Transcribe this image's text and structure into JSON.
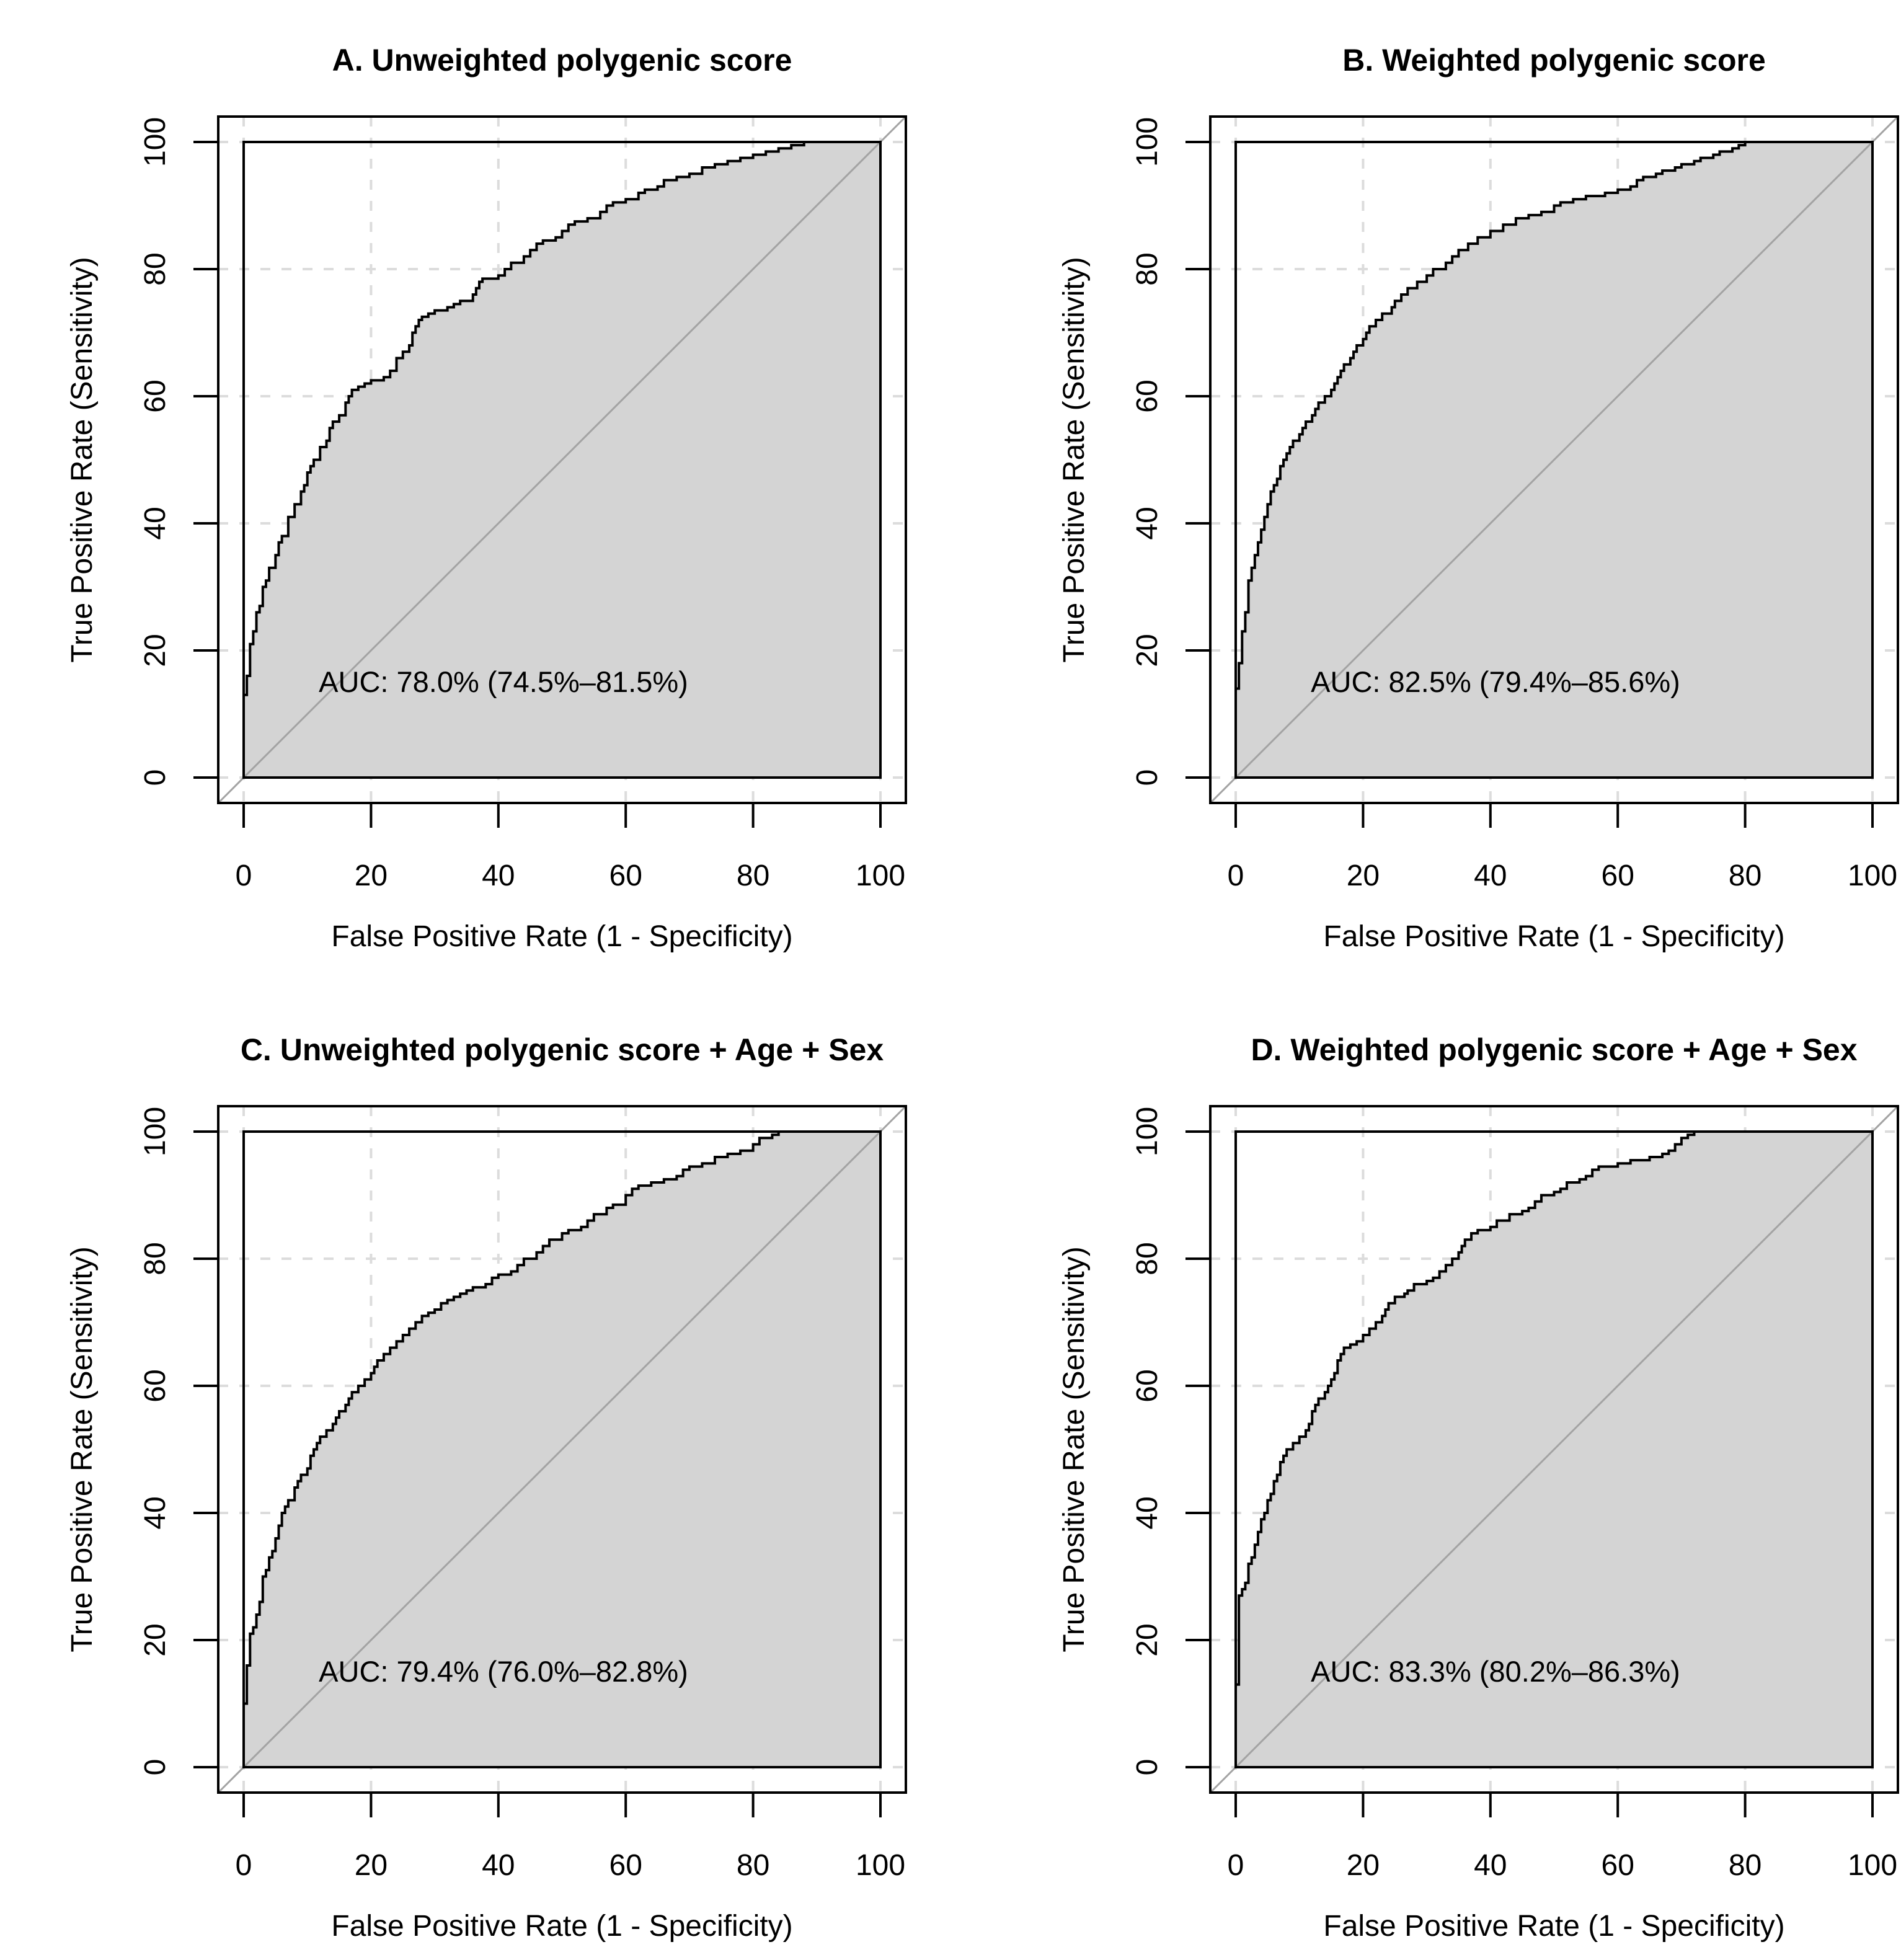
{
  "figure": {
    "background": "#ffffff",
    "colors": {
      "auc_fill": "#d4d4d4",
      "grid": "#dcdcdc",
      "diagonal": "#a3a3a3",
      "curve": "#000000",
      "frame": "#000000",
      "text": "#000000"
    }
  },
  "axes": {
    "x_label": "False Positive Rate (1 - Specificity)",
    "y_label": "True Positive Rate (Sensitivity)",
    "ticks": [
      0,
      20,
      40,
      60,
      80,
      100
    ]
  },
  "chart_data": [
    {
      "id": "A",
      "type": "line",
      "title": "A. Unweighted polygenic score",
      "xlabel": "False Positive Rate (1 - Specificity)",
      "ylabel": "True Positive Rate (Sensitivity)",
      "xlim": [
        0,
        100
      ],
      "ylim": [
        0,
        100
      ],
      "grid": true,
      "auc_label": "AUC: 78.0% (74.5%–81.5%)",
      "auc": 78.0,
      "ci_low": 74.5,
      "ci_high": 81.5,
      "roc_points": [
        [
          0,
          0
        ],
        [
          0,
          11
        ],
        [
          0.5,
          13
        ],
        [
          0.5,
          15
        ],
        [
          1,
          16
        ],
        [
          1,
          20
        ],
        [
          1.5,
          21
        ],
        [
          2,
          23
        ],
        [
          2.5,
          26
        ],
        [
          3,
          27
        ],
        [
          3,
          29
        ],
        [
          3.5,
          30
        ],
        [
          4,
          31
        ],
        [
          5,
          33
        ],
        [
          5.5,
          35
        ],
        [
          6,
          37
        ],
        [
          7,
          38
        ],
        [
          7,
          40
        ],
        [
          8,
          41
        ],
        [
          9,
          43
        ],
        [
          9.5,
          45
        ],
        [
          10,
          46
        ],
        [
          10.5,
          48
        ],
        [
          11,
          49
        ],
        [
          12,
          50
        ],
        [
          13,
          52
        ],
        [
          13.5,
          53
        ],
        [
          14,
          55
        ],
        [
          15,
          56
        ],
        [
          16,
          57
        ],
        [
          16.5,
          59
        ],
        [
          17,
          60
        ],
        [
          18,
          61
        ],
        [
          19,
          61.5
        ],
        [
          20,
          62
        ],
        [
          22,
          62.5
        ],
        [
          23,
          63
        ],
        [
          24,
          64
        ],
        [
          25,
          66
        ],
        [
          26,
          67
        ],
        [
          26.5,
          68
        ],
        [
          27,
          70
        ],
        [
          27.5,
          71
        ],
        [
          28,
          72
        ],
        [
          29,
          72.5
        ],
        [
          30,
          73
        ],
        [
          32,
          73.5
        ],
        [
          33,
          74
        ],
        [
          34,
          74.5
        ],
        [
          36,
          75
        ],
        [
          36.5,
          76
        ],
        [
          37,
          77
        ],
        [
          37.5,
          78
        ],
        [
          40,
          78.5
        ],
        [
          41,
          79
        ],
        [
          42,
          80
        ],
        [
          44,
          81
        ],
        [
          45,
          82
        ],
        [
          46,
          83
        ],
        [
          47,
          84
        ],
        [
          49,
          84.5
        ],
        [
          50,
          85
        ],
        [
          51,
          86
        ],
        [
          52,
          87
        ],
        [
          54,
          87.5
        ],
        [
          56,
          88
        ],
        [
          57,
          89
        ],
        [
          58,
          90
        ],
        [
          60,
          90.5
        ],
        [
          62,
          91
        ],
        [
          63,
          92
        ],
        [
          65,
          92.5
        ],
        [
          66,
          93
        ],
        [
          68,
          94
        ],
        [
          70,
          94.5
        ],
        [
          72,
          95
        ],
        [
          74,
          96
        ],
        [
          76,
          96.5
        ],
        [
          78,
          97
        ],
        [
          80,
          97.5
        ],
        [
          82,
          98
        ],
        [
          84,
          98.5
        ],
        [
          86,
          99
        ],
        [
          88,
          99.5
        ],
        [
          90,
          100
        ],
        [
          100,
          100
        ]
      ]
    },
    {
      "id": "B",
      "type": "line",
      "title": "B. Weighted polygenic score",
      "xlabel": "False Positive Rate (1 - Specificity)",
      "ylabel": "True Positive Rate (Sensitivity)",
      "xlim": [
        0,
        100
      ],
      "ylim": [
        0,
        100
      ],
      "grid": true,
      "auc_label": "AUC: 82.5% (79.4%–85.6%)",
      "auc": 82.5,
      "ci_low": 79.4,
      "ci_high": 85.6,
      "roc_points": [
        [
          0,
          0
        ],
        [
          0,
          12
        ],
        [
          0.5,
          14
        ],
        [
          0.5,
          17
        ],
        [
          1,
          18
        ],
        [
          1,
          21
        ],
        [
          1.5,
          23
        ],
        [
          2,
          26
        ],
        [
          2,
          28
        ],
        [
          2.5,
          31
        ],
        [
          3,
          33
        ],
        [
          3.5,
          35
        ],
        [
          4,
          37
        ],
        [
          4.5,
          39
        ],
        [
          5,
          41
        ],
        [
          5.5,
          43
        ],
        [
          6,
          45
        ],
        [
          6.5,
          46
        ],
        [
          7,
          47
        ],
        [
          7.5,
          49
        ],
        [
          8,
          50
        ],
        [
          8.5,
          51
        ],
        [
          9,
          52
        ],
        [
          10,
          53
        ],
        [
          10.5,
          54
        ],
        [
          11,
          55
        ],
        [
          12,
          56
        ],
        [
          12.5,
          57
        ],
        [
          13,
          58
        ],
        [
          14,
          59
        ],
        [
          15,
          60
        ],
        [
          15.5,
          61
        ],
        [
          16,
          62
        ],
        [
          16.5,
          63
        ],
        [
          17,
          64
        ],
        [
          18,
          65
        ],
        [
          18.5,
          66
        ],
        [
          19,
          67
        ],
        [
          20,
          68
        ],
        [
          20.5,
          69
        ],
        [
          21,
          70
        ],
        [
          22,
          71
        ],
        [
          23,
          72
        ],
        [
          24.5,
          73
        ],
        [
          25,
          74
        ],
        [
          26,
          75
        ],
        [
          27,
          76
        ],
        [
          28.5,
          77
        ],
        [
          30,
          78
        ],
        [
          31,
          79
        ],
        [
          33,
          80
        ],
        [
          34,
          81
        ],
        [
          35,
          82
        ],
        [
          36.5,
          83
        ],
        [
          38,
          84
        ],
        [
          40,
          85
        ],
        [
          42,
          86
        ],
        [
          44,
          87
        ],
        [
          46,
          88
        ],
        [
          48,
          88.5
        ],
        [
          50,
          89
        ],
        [
          51,
          90
        ],
        [
          53,
          90.5
        ],
        [
          55,
          91
        ],
        [
          58,
          91.5
        ],
        [
          60,
          92
        ],
        [
          62,
          92.5
        ],
        [
          63,
          93
        ],
        [
          64,
          94
        ],
        [
          66,
          94.5
        ],
        [
          67,
          95
        ],
        [
          69,
          95.5
        ],
        [
          70,
          96
        ],
        [
          72,
          96.5
        ],
        [
          73,
          97
        ],
        [
          75,
          97.5
        ],
        [
          76,
          98
        ],
        [
          78,
          98.5
        ],
        [
          79,
          99
        ],
        [
          80,
          99.5
        ],
        [
          81,
          100
        ],
        [
          100,
          100
        ]
      ]
    },
    {
      "id": "C",
      "type": "line",
      "title": "C. Unweighted polygenic score + Age + Sex",
      "xlabel": "False Positive Rate (1 - Specificity)",
      "ylabel": "True Positive Rate (Sensitivity)",
      "xlim": [
        0,
        100
      ],
      "ylim": [
        0,
        100
      ],
      "grid": true,
      "auc_label": "AUC: 79.4% (76.0%–82.8%)",
      "auc": 79.4,
      "ci_low": 76.0,
      "ci_high": 82.8,
      "roc_points": [
        [
          0,
          0
        ],
        [
          0,
          8
        ],
        [
          0.5,
          10
        ],
        [
          0.5,
          14
        ],
        [
          1,
          16
        ],
        [
          1,
          20
        ],
        [
          1.5,
          21
        ],
        [
          2,
          22
        ],
        [
          2,
          23
        ],
        [
          2.5,
          24
        ],
        [
          3,
          26
        ],
        [
          3,
          28
        ],
        [
          3.5,
          30
        ],
        [
          4,
          31
        ],
        [
          4.5,
          33
        ],
        [
          5,
          34
        ],
        [
          5.5,
          36
        ],
        [
          6,
          38
        ],
        [
          6.5,
          40
        ],
        [
          7,
          41
        ],
        [
          8,
          42
        ],
        [
          8.5,
          44
        ],
        [
          9,
          45
        ],
        [
          10,
          46
        ],
        [
          10.5,
          47
        ],
        [
          11,
          49
        ],
        [
          11.5,
          50
        ],
        [
          12,
          51
        ],
        [
          13,
          52
        ],
        [
          14,
          53
        ],
        [
          14.5,
          54
        ],
        [
          15,
          55
        ],
        [
          16,
          56
        ],
        [
          16.5,
          57
        ],
        [
          17,
          58
        ],
        [
          18,
          59
        ],
        [
          19,
          60
        ],
        [
          20,
          61
        ],
        [
          20.5,
          62
        ],
        [
          21,
          63
        ],
        [
          22,
          64
        ],
        [
          23,
          65
        ],
        [
          24,
          66
        ],
        [
          25,
          67
        ],
        [
          26,
          68
        ],
        [
          27,
          69
        ],
        [
          28,
          70
        ],
        [
          29,
          71
        ],
        [
          30,
          71.5
        ],
        [
          31,
          72
        ],
        [
          32,
          73
        ],
        [
          33,
          73.5
        ],
        [
          34,
          74
        ],
        [
          35,
          74.5
        ],
        [
          36,
          75
        ],
        [
          38,
          75.5
        ],
        [
          39,
          76
        ],
        [
          40,
          77
        ],
        [
          42,
          77.5
        ],
        [
          43,
          78
        ],
        [
          44,
          79
        ],
        [
          46,
          80
        ],
        [
          47,
          81
        ],
        [
          48,
          82
        ],
        [
          50,
          83
        ],
        [
          51,
          84
        ],
        [
          53,
          84.5
        ],
        [
          54,
          85
        ],
        [
          55,
          86
        ],
        [
          57,
          87
        ],
        [
          58,
          88
        ],
        [
          60,
          88.5
        ],
        [
          61,
          90
        ],
        [
          62,
          91
        ],
        [
          64,
          91.5
        ],
        [
          66,
          92
        ],
        [
          68,
          92.5
        ],
        [
          69,
          93
        ],
        [
          70,
          94
        ],
        [
          72,
          94.5
        ],
        [
          74,
          95
        ],
        [
          76,
          96
        ],
        [
          78,
          96.5
        ],
        [
          80,
          97
        ],
        [
          81,
          98
        ],
        [
          83,
          99
        ],
        [
          84,
          99.5
        ],
        [
          85,
          100
        ],
        [
          100,
          100
        ]
      ]
    },
    {
      "id": "D",
      "type": "line",
      "title": "D. Weighted polygenic score + Age + Sex",
      "xlabel": "False Positive Rate (1 - Specificity)",
      "ylabel": "True Positive Rate (Sensitivity)",
      "xlim": [
        0,
        100
      ],
      "ylim": [
        0,
        100
      ],
      "grid": true,
      "auc_label": "AUC: 83.3% (80.2%–86.3%)",
      "auc": 83.3,
      "ci_low": 80.2,
      "ci_high": 86.3,
      "roc_points": [
        [
          0,
          0
        ],
        [
          0,
          12
        ],
        [
          0.5,
          13
        ],
        [
          0.5,
          26
        ],
        [
          1,
          27
        ],
        [
          1.5,
          28
        ],
        [
          2,
          29
        ],
        [
          2,
          30
        ],
        [
          2.5,
          32
        ],
        [
          3,
          33
        ],
        [
          3.5,
          35
        ],
        [
          4,
          37
        ],
        [
          4.5,
          39
        ],
        [
          5,
          40
        ],
        [
          5.5,
          42
        ],
        [
          6,
          43
        ],
        [
          6.5,
          45
        ],
        [
          7,
          46
        ],
        [
          7.5,
          48
        ],
        [
          8,
          49
        ],
        [
          9,
          50
        ],
        [
          10,
          51
        ],
        [
          11,
          52
        ],
        [
          11.5,
          53
        ],
        [
          12,
          54
        ],
        [
          12.5,
          56
        ],
        [
          13,
          57
        ],
        [
          14,
          58
        ],
        [
          14.5,
          59
        ],
        [
          15,
          60
        ],
        [
          15.5,
          61
        ],
        [
          16,
          62
        ],
        [
          16.5,
          64
        ],
        [
          17,
          65
        ],
        [
          18,
          66
        ],
        [
          19,
          66.5
        ],
        [
          20,
          67
        ],
        [
          21,
          68
        ],
        [
          22,
          69
        ],
        [
          23,
          70
        ],
        [
          23.5,
          71
        ],
        [
          24,
          72
        ],
        [
          25,
          73
        ],
        [
          26.5,
          74
        ],
        [
          27,
          74.5
        ],
        [
          28,
          75
        ],
        [
          30,
          76
        ],
        [
          31,
          76.5
        ],
        [
          32,
          77
        ],
        [
          33,
          78
        ],
        [
          34,
          79
        ],
        [
          35,
          80
        ],
        [
          35.5,
          81
        ],
        [
          36,
          82
        ],
        [
          37,
          83
        ],
        [
          38,
          84
        ],
        [
          40,
          84.5
        ],
        [
          41,
          85
        ],
        [
          43,
          86
        ],
        [
          45,
          87
        ],
        [
          46,
          87.5
        ],
        [
          47,
          88
        ],
        [
          48,
          89
        ],
        [
          50,
          90
        ],
        [
          51,
          90.5
        ],
        [
          52,
          91
        ],
        [
          54,
          92
        ],
        [
          55,
          92.5
        ],
        [
          56,
          93
        ],
        [
          57,
          94
        ],
        [
          60,
          94.5
        ],
        [
          62,
          95
        ],
        [
          65,
          95.5
        ],
        [
          67,
          96
        ],
        [
          68,
          96.5
        ],
        [
          69,
          97
        ],
        [
          70,
          98
        ],
        [
          71,
          99
        ],
        [
          72,
          99.5
        ],
        [
          74,
          100
        ],
        [
          100,
          100
        ]
      ]
    }
  ]
}
